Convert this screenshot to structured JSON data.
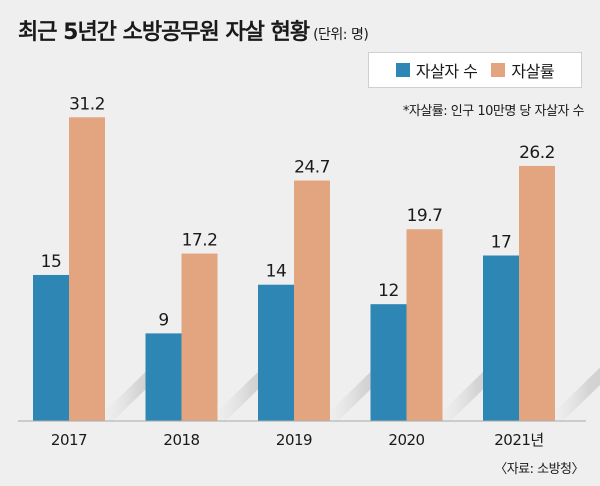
{
  "title": "최근 5년간 소방공무원 자살 현황",
  "unit": "(단위: 명)",
  "note": "*자살률: 인구 10만명 당 자살자 수",
  "source": "〈자료: 소방청〉",
  "colors": {
    "series1": "#2e86b5",
    "series2": "#e3a57f",
    "background": "#efefef"
  },
  "chart_data": {
    "type": "bar",
    "categories": [
      "2017",
      "2018",
      "2019",
      "2020",
      "2021년"
    ],
    "series": [
      {
        "name": "자살자 수",
        "values": [
          15,
          9,
          14,
          12,
          17
        ]
      },
      {
        "name": "자살률",
        "values": [
          31.2,
          17.2,
          24.7,
          19.7,
          26.2
        ]
      }
    ],
    "value_labels": [
      [
        "15",
        "9",
        "14",
        "12",
        "17"
      ],
      [
        "31.2",
        "17.2",
        "24.7",
        "19.7",
        "26.2"
      ]
    ],
    "ylim": [
      0,
      34
    ],
    "grid": false,
    "legend_position": "top-right"
  }
}
